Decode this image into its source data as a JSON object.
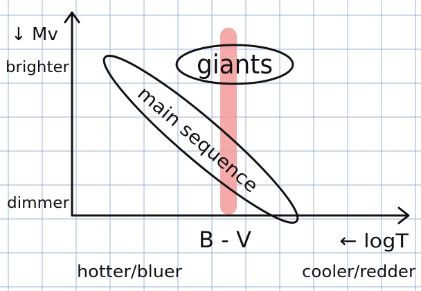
{
  "axis": {
    "y_label": "↓ Mv",
    "brighter": "brighter",
    "dimmer": "dimmer",
    "x_label": "B - V",
    "log_t": "← logT",
    "hotter": "hotter/bluer",
    "cooler": "cooler/redder"
  },
  "regions": {
    "giants": "giants",
    "main_sequence": "main sequence"
  },
  "colors": {
    "grid": "#9db0d6",
    "band": "#f59a9a",
    "ink": "#111111"
  }
}
